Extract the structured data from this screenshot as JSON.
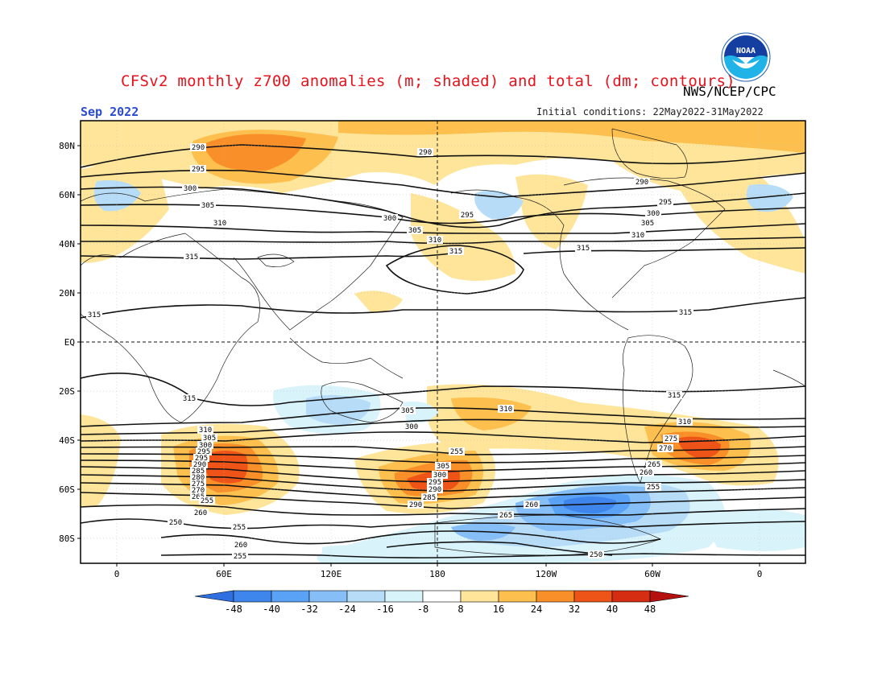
{
  "header": {
    "title": "CFSv2 monthly z700 anomalies (m; shaded) and total (dm; contours)",
    "agency": "NWS/NCEP/CPC",
    "month": "Sep 2022",
    "initial_conditions": "Initial conditions: 22May2022-31May2022",
    "logo_icon": "noaa-logo-icon",
    "logo_text": "NOAA"
  },
  "axes": {
    "lat_labels": [
      "80N",
      "60N",
      "40N",
      "20N",
      "EQ",
      "20S",
      "40S",
      "60S",
      "80S"
    ],
    "lon_labels": [
      "0",
      "60E",
      "120E",
      "180",
      "120W",
      "60W",
      "0"
    ]
  },
  "colorbar": {
    "labels": [
      "-48",
      "-40",
      "-32",
      "-24",
      "-16",
      "-8",
      "8",
      "16",
      "24",
      "32",
      "40",
      "48"
    ],
    "colors": [
      "#2f6fe0",
      "#3e86ec",
      "#5aa2f5",
      "#86bff8",
      "#b6dcf8",
      "#d9f3fb",
      "#ffffff",
      "#fee59a",
      "#fdc04e",
      "#f98f28",
      "#ee5418",
      "#d42d12",
      "#b51010"
    ]
  },
  "contour_labels": [
    "290",
    "295",
    "300",
    "305",
    "310",
    "315",
    "290",
    "300",
    "305",
    "310",
    "315",
    "295",
    "290",
    "295",
    "300",
    "305",
    "310",
    "315",
    "315",
    "315",
    "315",
    "305",
    "300",
    "310",
    "310",
    "315",
    "310",
    "305",
    "300",
    "295",
    "295",
    "290",
    "285",
    "280",
    "275",
    "270",
    "265",
    "260",
    "255",
    "250",
    "255",
    "260",
    "255",
    "265",
    "260",
    "250",
    "255",
    "305",
    "300",
    "295",
    "290",
    "285",
    "290",
    "275",
    "270",
    "265",
    "260",
    "255"
  ]
}
